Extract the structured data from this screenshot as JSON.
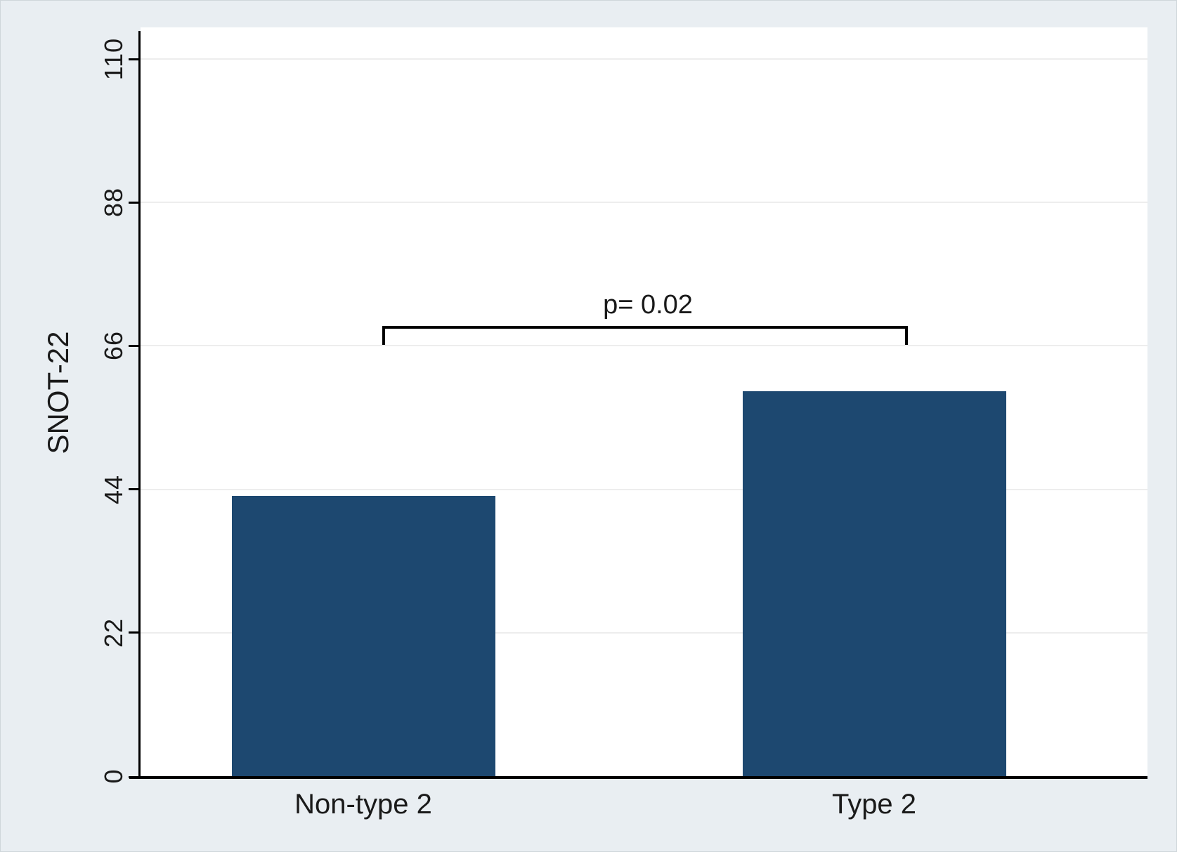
{
  "figure": {
    "background_color": "#e9eef2",
    "plot_background_color": "#ffffff",
    "gridline_color": "#ededed",
    "axis_color": "#000000",
    "text_color": "#1a1a1a"
  },
  "chart_data": {
    "type": "bar",
    "title": "",
    "xlabel": "",
    "ylabel": "SNOT-22",
    "categories": [
      "Non-type 2",
      "Type 2"
    ],
    "values": [
      43,
      59
    ],
    "ylim": [
      0,
      110
    ],
    "yticks": [
      "0",
      "22",
      "44",
      "66",
      "88",
      "110"
    ],
    "ytick_values": [
      0,
      22,
      44,
      66,
      88,
      110
    ],
    "grid": "on",
    "legend": "none",
    "bar_color": "#1d4870",
    "annotation": {
      "label": "p= 0.02",
      "connects": [
        "Non-type 2",
        "Type 2"
      ]
    }
  }
}
